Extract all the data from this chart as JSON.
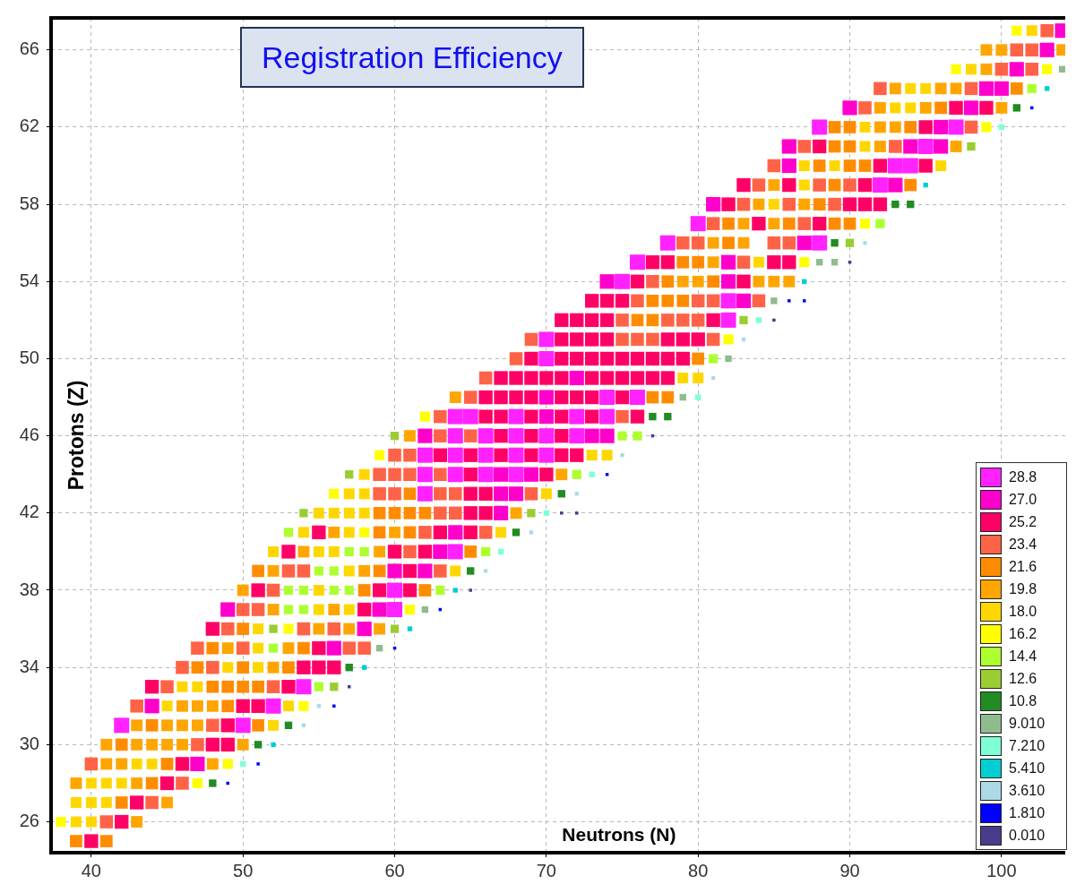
{
  "chart_data": {
    "type": "scatter",
    "title": "Registration Efficiency",
    "xlabel": "Neutrons (N)",
    "ylabel": "Protons (Z)",
    "xlim": [
      37.35,
      104.2
    ],
    "ylim": [
      24.4,
      67.66
    ],
    "xticks": [
      40,
      50,
      60,
      70,
      80,
      90,
      100
    ],
    "yticks": [
      26,
      30,
      34,
      38,
      42,
      46,
      50,
      54,
      58,
      62,
      66
    ],
    "grid": true,
    "marker": "square",
    "legend": "bottom right",
    "series": [
      {
        "name": "28.8",
        "color": "#ff22ff",
        "x": [
          42,
          50,
          52,
          54,
          60,
          60,
          64,
          62,
          62,
          64,
          66,
          68,
          62,
          64,
          66,
          68,
          70,
          64,
          66,
          68,
          70,
          72,
          64,
          65,
          68,
          72,
          74,
          74,
          76,
          70,
          70,
          82,
          82,
          75,
          76,
          78,
          88,
          80,
          92,
          93,
          94,
          95,
          88,
          97
        ],
        "values": [
          31,
          31,
          32,
          33,
          37,
          38,
          40,
          43,
          44,
          44,
          44,
          44,
          45,
          45,
          45,
          45,
          45,
          46,
          46,
          46,
          46,
          46,
          47,
          47,
          47,
          47,
          47,
          48,
          48,
          50,
          51,
          52,
          53,
          54,
          55,
          56,
          56,
          57,
          59,
          60,
          60,
          61,
          62,
          62
        ]
      },
      {
        "name": "27.0",
        "color": "#ff00cc",
        "x": [
          47,
          44,
          56,
          58,
          49,
          59,
          60,
          62,
          63,
          64,
          67,
          67,
          68,
          67,
          69,
          62,
          73,
          74,
          70,
          70,
          72,
          83,
          74,
          82,
          82,
          87,
          81,
          93,
          86,
          86,
          94,
          96,
          96,
          90,
          98,
          99,
          100,
          101,
          103,
          104
        ],
        "values": [
          29,
          32,
          35,
          36,
          37,
          37,
          39,
          39,
          40,
          41,
          42,
          43,
          43,
          44,
          44,
          46,
          46,
          46,
          47,
          48,
          49,
          53,
          54,
          54,
          55,
          56,
          58,
          59,
          60,
          61,
          61,
          61,
          62,
          63,
          63,
          64,
          64,
          65,
          66,
          67
        ]
      },
      {
        "name": "25.2",
        "color": "#ff0066",
        "x": [
          40,
          42,
          43,
          45,
          46,
          48,
          49,
          49,
          50,
          51,
          44,
          53,
          54,
          55,
          56,
          55,
          48,
          58,
          51,
          59,
          61,
          61,
          53,
          60,
          62,
          55,
          63,
          65,
          65,
          66,
          65,
          66,
          65,
          70,
          63,
          65,
          67,
          69,
          71,
          72,
          67,
          69,
          71,
          66,
          67,
          69,
          71,
          73,
          76,
          66,
          67,
          68,
          69,
          71,
          72,
          73,
          75,
          67,
          68,
          69,
          70,
          71,
          73,
          74,
          75,
          76,
          77,
          78,
          69,
          71,
          72,
          73,
          74,
          75,
          76,
          77,
          78,
          79,
          71,
          72,
          73,
          74,
          78,
          79,
          80,
          71,
          72,
          73,
          74,
          81,
          73,
          74,
          75,
          76,
          83,
          77,
          78,
          85,
          86,
          84,
          88,
          82,
          90,
          91,
          92,
          83,
          86,
          91,
          92,
          95,
          88,
          95,
          97,
          99
        ],
        "values": [
          25,
          26,
          27,
          28,
          29,
          30,
          30,
          31,
          32,
          32,
          33,
          33,
          34,
          34,
          34,
          35,
          36,
          37,
          38,
          38,
          38,
          39,
          40,
          40,
          40,
          41,
          41,
          41,
          42,
          42,
          43,
          43,
          44,
          44,
          45,
          45,
          45,
          45,
          45,
          45,
          46,
          46,
          46,
          47,
          47,
          47,
          47,
          47,
          47,
          48,
          48,
          48,
          48,
          48,
          48,
          48,
          48,
          49,
          49,
          49,
          49,
          49,
          49,
          49,
          49,
          49,
          49,
          49,
          50,
          50,
          50,
          50,
          50,
          50,
          50,
          50,
          50,
          50,
          51,
          51,
          51,
          51,
          51,
          51,
          51,
          52,
          52,
          52,
          52,
          52,
          53,
          53,
          53,
          54,
          54,
          55,
          55,
          55,
          55,
          57,
          57,
          58,
          58,
          58,
          58,
          59,
          59,
          59,
          60,
          60,
          61,
          62,
          63,
          63
        ]
      },
      {
        "name": "23.4",
        "color": "#ff6347",
        "x": [
          41,
          44,
          46,
          40,
          47,
          48,
          43,
          45,
          52,
          46,
          48,
          47,
          50,
          57,
          58,
          49,
          54,
          56,
          50,
          51,
          52,
          53,
          54,
          63,
          61,
          62,
          66,
          63,
          64,
          59,
          60,
          63,
          64,
          69,
          59,
          60,
          61,
          63,
          60,
          61,
          63,
          65,
          63,
          75,
          65,
          66,
          68,
          69,
          75,
          76,
          77,
          81,
          75,
          78,
          79,
          80,
          76,
          80,
          81,
          84,
          77,
          83,
          79,
          80,
          85,
          86,
          81,
          87,
          83,
          86,
          89,
          84,
          88,
          90,
          85,
          87,
          93,
          98,
          91,
          92,
          98,
          100,
          102,
          101,
          102,
          103
        ],
        "values": [
          26,
          27,
          28,
          29,
          30,
          31,
          32,
          33,
          33,
          34,
          34,
          35,
          35,
          35,
          35,
          36,
          36,
          36,
          37,
          37,
          38,
          39,
          39,
          39,
          40,
          41,
          41,
          42,
          42,
          43,
          43,
          43,
          43,
          43,
          44,
          44,
          44,
          44,
          45,
          45,
          46,
          46,
          47,
          47,
          48,
          49,
          50,
          51,
          51,
          51,
          51,
          51,
          52,
          52,
          52,
          52,
          53,
          53,
          53,
          53,
          54,
          55,
          56,
          56,
          56,
          56,
          57,
          57,
          58,
          58,
          58,
          59,
          59,
          59,
          60,
          61,
          61,
          62,
          63,
          64,
          64,
          65,
          65,
          66,
          66,
          67
        ]
      },
      {
        "name": "21.6",
        "color": "#ff8c00",
        "x": [
          39,
          41,
          42,
          44,
          45,
          42,
          44,
          51,
          49,
          48,
          49,
          50,
          51,
          47,
          50,
          53,
          48,
          54,
          50,
          58,
          62,
          51,
          59,
          65,
          59,
          61,
          59,
          60,
          61,
          62,
          61,
          77,
          78,
          80,
          76,
          77,
          77,
          78,
          79,
          78,
          81,
          79,
          80,
          82,
          82,
          86,
          89,
          90,
          88,
          89,
          94,
          88,
          90,
          91,
          89,
          90,
          89,
          90,
          94,
          96,
          101
        ],
        "values": [
          25,
          25,
          27,
          28,
          29,
          30,
          31,
          31,
          32,
          33,
          33,
          33,
          33,
          34,
          34,
          34,
          35,
          35,
          36,
          38,
          38,
          39,
          39,
          40,
          41,
          41,
          42,
          42,
          42,
          42,
          43,
          48,
          48,
          50,
          52,
          52,
          53,
          53,
          53,
          54,
          54,
          55,
          55,
          56,
          57,
          57,
          57,
          57,
          58,
          59,
          59,
          60,
          60,
          60,
          61,
          61,
          62,
          62,
          62,
          63,
          64
        ]
      },
      {
        "name": "19.8",
        "color": "#ffa500",
        "x": [
          43,
          45,
          39,
          43,
          41,
          42,
          48,
          41,
          43,
          44,
          45,
          46,
          50,
          43,
          45,
          46,
          47,
          46,
          47,
          48,
          52,
          49,
          53,
          55,
          57,
          59,
          52,
          56,
          50,
          52,
          58,
          54,
          59,
          56,
          60,
          68,
          71,
          61,
          64,
          79,
          80,
          84,
          85,
          86,
          81,
          81,
          83,
          83,
          85,
          84,
          87,
          85,
          92,
          97,
          92,
          93,
          92,
          95,
          100,
          93,
          96,
          97,
          99,
          99,
          100,
          104
        ],
        "values": [
          26,
          27,
          28,
          28,
          29,
          29,
          29,
          30,
          30,
          30,
          30,
          30,
          30,
          31,
          31,
          31,
          31,
          32,
          32,
          32,
          34,
          35,
          35,
          36,
          36,
          36,
          37,
          37,
          38,
          39,
          39,
          40,
          40,
          41,
          41,
          42,
          44,
          46,
          48,
          54,
          54,
          54,
          54,
          54,
          55,
          56,
          56,
          57,
          57,
          58,
          58,
          59,
          61,
          61,
          62,
          62,
          63,
          63,
          63,
          64,
          64,
          64,
          65,
          66,
          66,
          66
        ]
      },
      {
        "name": "18.0",
        "color": "#ffd700",
        "x": [
          39,
          40,
          39,
          40,
          41,
          40,
          41,
          42,
          43,
          44,
          52,
          45,
          53,
          46,
          47,
          49,
          51,
          51,
          51,
          55,
          57,
          55,
          57,
          64,
          52,
          55,
          56,
          54,
          57,
          67,
          55,
          56,
          57,
          58,
          57,
          58,
          70,
          58,
          73,
          74,
          79,
          80,
          84,
          85,
          87,
          87,
          89,
          96,
          91,
          91,
          93,
          94,
          94,
          95,
          98,
          102
        ],
        "values": [
          26,
          26,
          27,
          27,
          27,
          28,
          28,
          28,
          29,
          29,
          31,
          32,
          32,
          33,
          33,
          34,
          34,
          35,
          36,
          37,
          37,
          38,
          39,
          39,
          40,
          40,
          40,
          41,
          41,
          41,
          42,
          42,
          42,
          42,
          43,
          43,
          43,
          44,
          45,
          45,
          49,
          49,
          55,
          58,
          59,
          60,
          60,
          60,
          61,
          62,
          63,
          63,
          64,
          64,
          65,
          67
        ]
      },
      {
        "name": "16.2",
        "color": "#ffff00",
        "x": [
          38,
          47,
          49,
          54,
          53,
          61,
          58,
          56,
          59,
          62,
          82,
          87,
          91,
          99,
          97,
          103,
          101
        ],
        "values": [
          26,
          28,
          29,
          32,
          36,
          37,
          41,
          43,
          45,
          47,
          51,
          55,
          57,
          62,
          65,
          65,
          67
        ]
      },
      {
        "name": "14.4",
        "color": "#adff2f",
        "x": [
          55,
          52,
          53,
          54,
          53,
          54,
          56,
          57,
          63,
          55,
          56,
          57,
          58,
          66,
          53,
          72,
          75,
          76,
          81,
          92,
          102
        ],
        "values": [
          33,
          35,
          37,
          37,
          38,
          38,
          38,
          38,
          38,
          39,
          39,
          40,
          40,
          40,
          41,
          44,
          46,
          46,
          50,
          57,
          64
        ]
      },
      {
        "name": "12.6",
        "color": "#9acd32",
        "x": [
          56,
          52,
          60,
          54,
          69,
          57,
          60,
          83,
          90,
          98
        ],
        "values": [
          33,
          36,
          36,
          42,
          42,
          44,
          46,
          52,
          56,
          61
        ]
      },
      {
        "name": "10.8",
        "color": "#228b22",
        "x": [
          48,
          51,
          53,
          57,
          65,
          68,
          71,
          77,
          78,
          89,
          93,
          94,
          101
        ],
        "values": [
          28,
          30,
          31,
          34,
          39,
          41,
          43,
          47,
          47,
          56,
          58,
          58,
          63
        ]
      },
      {
        "name": "9.010",
        "color": "#8fbc8f",
        "x": [
          59,
          62,
          79,
          82,
          85,
          88,
          89,
          104
        ],
        "values": [
          35,
          37,
          48,
          50,
          53,
          55,
          55,
          65
        ]
      },
      {
        "name": "7.210",
        "color": "#7fffd4",
        "x": [
          50,
          67,
          70,
          73,
          80,
          84,
          100
        ],
        "values": [
          29,
          40,
          42,
          44,
          48,
          52,
          62
        ]
      },
      {
        "name": "5.410",
        "color": "#00ced1",
        "x": [
          52,
          58,
          61,
          64,
          87,
          95,
          103
        ],
        "values": [
          30,
          34,
          36,
          38,
          54,
          59,
          64
        ]
      },
      {
        "name": "3.610",
        "color": "#add8e6",
        "x": [
          54,
          55,
          66,
          69,
          72,
          75,
          81,
          83,
          91
        ],
        "values": [
          31,
          32,
          39,
          41,
          43,
          45,
          49,
          51,
          56
        ]
      },
      {
        "name": "1.810",
        "color": "#0000ff",
        "x": [
          49,
          51,
          56,
          60,
          63,
          74,
          86,
          87,
          102
        ],
        "values": [
          28,
          29,
          32,
          35,
          37,
          44,
          53,
          53,
          63
        ]
      },
      {
        "name": "0.010",
        "color": "#483d8b",
        "x": [
          57,
          65,
          71,
          72,
          77,
          85,
          90
        ],
        "values": [
          33,
          38,
          42,
          42,
          46,
          52,
          55
        ]
      }
    ]
  }
}
